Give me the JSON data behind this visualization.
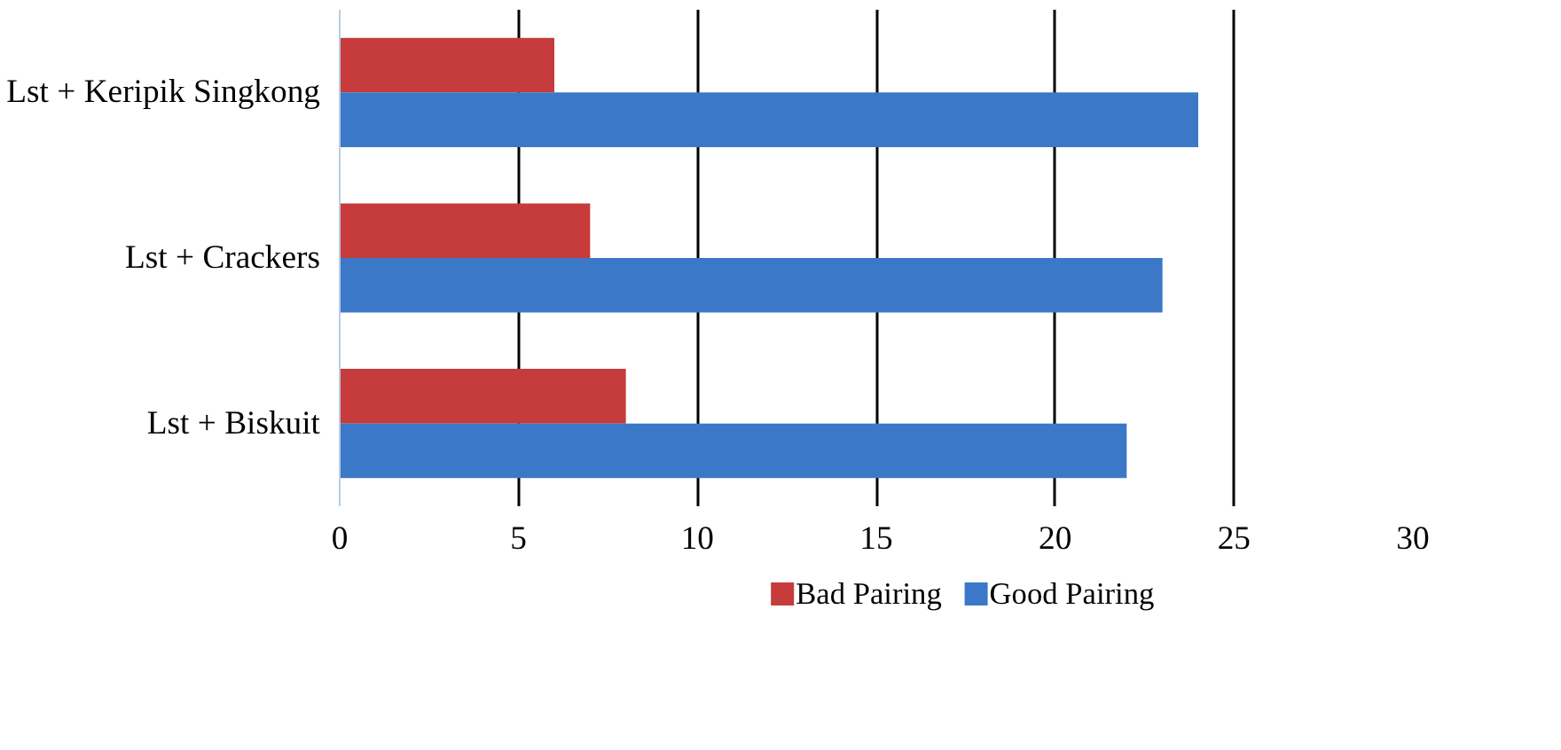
{
  "chart_data": {
    "type": "bar",
    "orientation": "horizontal",
    "categories": [
      "Lst + Keripik Singkong",
      "Lst + Crackers",
      "Lst + Biskuit"
    ],
    "series": [
      {
        "name": "Bad Pairing",
        "color": "#c63b3b",
        "values": [
          6,
          7,
          8
        ]
      },
      {
        "name": "Good Pairing",
        "color": "#3c78c8",
        "values": [
          24,
          23,
          22
        ]
      }
    ],
    "xlim": [
      0,
      30
    ],
    "xticks": [
      0,
      5,
      10,
      15,
      20,
      25,
      30
    ],
    "grid": "x",
    "legend": "bottom"
  }
}
